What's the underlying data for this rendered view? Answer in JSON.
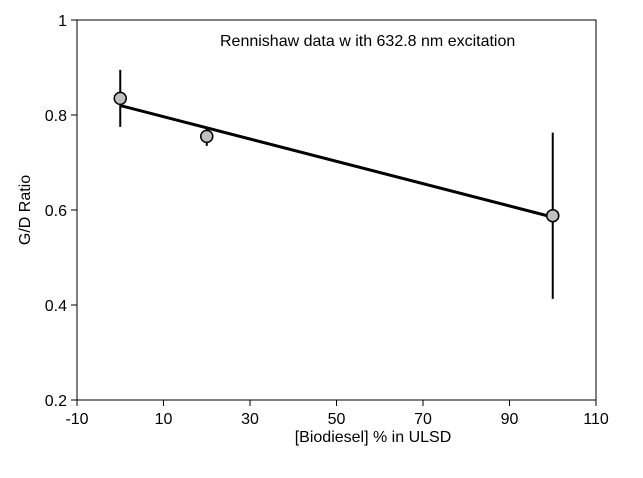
{
  "chart_data": {
    "type": "scatter",
    "annotation": "Rennishaw  data w ith 632.8 nm excitation",
    "xlabel": "[Biodiesel] % in ULSD",
    "ylabel": "G/D Ratio",
    "xlim": [
      -10,
      110
    ],
    "ylim": [
      0.2,
      1
    ],
    "xticks": [
      -10,
      10,
      30,
      50,
      70,
      90,
      110
    ],
    "yticks": [
      0.2,
      0.4,
      0.6,
      0.8,
      1
    ],
    "ytick_labels": [
      "0.2",
      "0.4",
      "0.6",
      "0.8",
      "1"
    ],
    "grid": false,
    "legend": "none",
    "series": [
      {
        "x": [
          0,
          20,
          100
        ],
        "y": [
          0.835,
          0.755,
          0.588
        ],
        "error": [
          0.06,
          0.02,
          0.175
        ]
      }
    ],
    "trendline": {
      "x": [
        0,
        100
      ],
      "y": [
        0.82,
        0.585
      ]
    },
    "colors": {
      "marker_fill": "#c0c0c0",
      "marker_stroke": "#000000",
      "line": "#000000"
    }
  }
}
